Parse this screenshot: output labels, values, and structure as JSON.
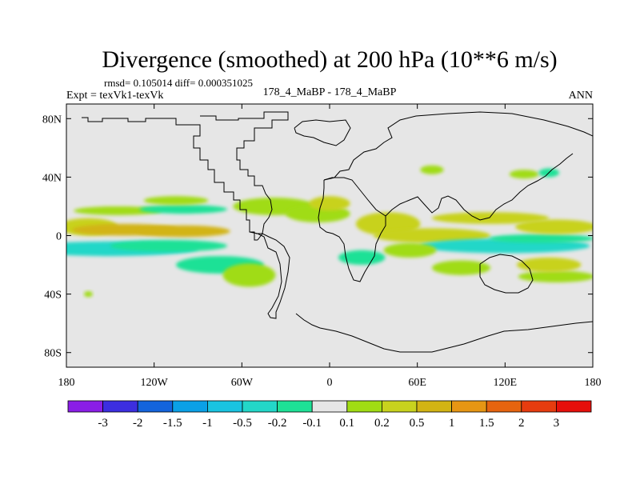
{
  "chart_data": {
    "type": "heatmap",
    "title": "Divergence (smoothed) at 200 hPa (10**6 m/s)",
    "stats_line": "rmsd= 0.105014 diff= 0.000351025",
    "expt_label": "Expt = texVk1-texVk",
    "case_label": "178_4_MaBP - 178_4_MaBP",
    "season": "ANN",
    "xlim": [
      -180,
      180
    ],
    "ylim": [
      -90,
      90
    ],
    "x_ticks": [
      {
        "value": -180,
        "label": "180"
      },
      {
        "value": -120,
        "label": "120W"
      },
      {
        "value": -60,
        "label": "60W"
      },
      {
        "value": 0,
        "label": "0"
      },
      {
        "value": 60,
        "label": "60E"
      },
      {
        "value": 120,
        "label": "120E"
      },
      {
        "value": 180,
        "label": "180"
      }
    ],
    "y_ticks": [
      {
        "value": 80,
        "label": "80N"
      },
      {
        "value": 40,
        "label": "40N"
      },
      {
        "value": 0,
        "label": "0"
      },
      {
        "value": -40,
        "label": "40S"
      },
      {
        "value": -80,
        "label": "80S"
      }
    ],
    "colorbar": {
      "colors": [
        "#8a1ee6",
        "#3c2ee0",
        "#1464dc",
        "#0aa0e6",
        "#19c3e1",
        "#23d7c8",
        "#1ee196",
        "#e6e6e6",
        "#a0dc14",
        "#c8d21e",
        "#d2b414",
        "#e69614",
        "#e6640f",
        "#e63c0f",
        "#e60f0a"
      ],
      "labels": [
        "-3",
        "-2",
        "-1.5",
        "-1",
        "-0.5",
        "-0.2",
        "-0.1",
        "0.1",
        "0.2",
        "0.5",
        "1",
        "1.5",
        "2",
        "3"
      ]
    },
    "fields": [
      {
        "lon": -165,
        "lat": 6,
        "w": 20,
        "h": 6,
        "level": 9
      },
      {
        "lon": -140,
        "lat": 4,
        "w": 36,
        "h": 4,
        "level": 10
      },
      {
        "lon": -100,
        "lat": 3,
        "w": 32,
        "h": 4,
        "level": 10
      },
      {
        "lon": -150,
        "lat": -9,
        "w": 60,
        "h": 5,
        "level": 5
      },
      {
        "lon": -110,
        "lat": -7,
        "w": 40,
        "h": 4,
        "level": 6
      },
      {
        "lon": -75,
        "lat": -20,
        "w": 30,
        "h": 6,
        "level": 6
      },
      {
        "lon": -55,
        "lat": -27,
        "w": 18,
        "h": 8,
        "level": 8
      },
      {
        "lon": -145,
        "lat": 17,
        "w": 30,
        "h": 3,
        "level": 8
      },
      {
        "lon": -100,
        "lat": 18,
        "w": 30,
        "h": 3,
        "level": 6
      },
      {
        "lon": -105,
        "lat": 24,
        "w": 22,
        "h": 3,
        "level": 8
      },
      {
        "lon": -38,
        "lat": 20,
        "w": 28,
        "h": 6,
        "level": 8
      },
      {
        "lon": -8,
        "lat": 15,
        "w": 22,
        "h": 6,
        "level": 8
      },
      {
        "lon": 0,
        "lat": 22,
        "w": 14,
        "h": 5,
        "level": 9
      },
      {
        "lon": 40,
        "lat": 8,
        "w": 22,
        "h": 8,
        "level": 9
      },
      {
        "lon": 70,
        "lat": 0,
        "w": 40,
        "h": 5,
        "level": 9
      },
      {
        "lon": 120,
        "lat": -7,
        "w": 58,
        "h": 5,
        "level": 5
      },
      {
        "lon": 145,
        "lat": -2,
        "w": 36,
        "h": 3,
        "level": 6
      },
      {
        "lon": 155,
        "lat": 6,
        "w": 28,
        "h": 5,
        "level": 9
      },
      {
        "lon": 110,
        "lat": 12,
        "w": 40,
        "h": 4,
        "level": 9
      },
      {
        "lon": 22,
        "lat": -15,
        "w": 16,
        "h": 5,
        "level": 6
      },
      {
        "lon": 55,
        "lat": -10,
        "w": 18,
        "h": 5,
        "level": 8
      },
      {
        "lon": 90,
        "lat": -22,
        "w": 20,
        "h": 5,
        "level": 8
      },
      {
        "lon": 155,
        "lat": -28,
        "w": 26,
        "h": 4,
        "level": 8
      },
      {
        "lon": 150,
        "lat": -20,
        "w": 22,
        "h": 5,
        "level": 9
      },
      {
        "lon": 133,
        "lat": 42,
        "w": 10,
        "h": 3,
        "level": 8
      },
      {
        "lon": 150,
        "lat": 43,
        "w": 7,
        "h": 3,
        "level": 6
      },
      {
        "lon": 70,
        "lat": 45,
        "w": 8,
        "h": 3,
        "level": 8
      },
      {
        "lon": -165,
        "lat": -40,
        "w": 3,
        "h": 2,
        "level": 8
      }
    ]
  }
}
